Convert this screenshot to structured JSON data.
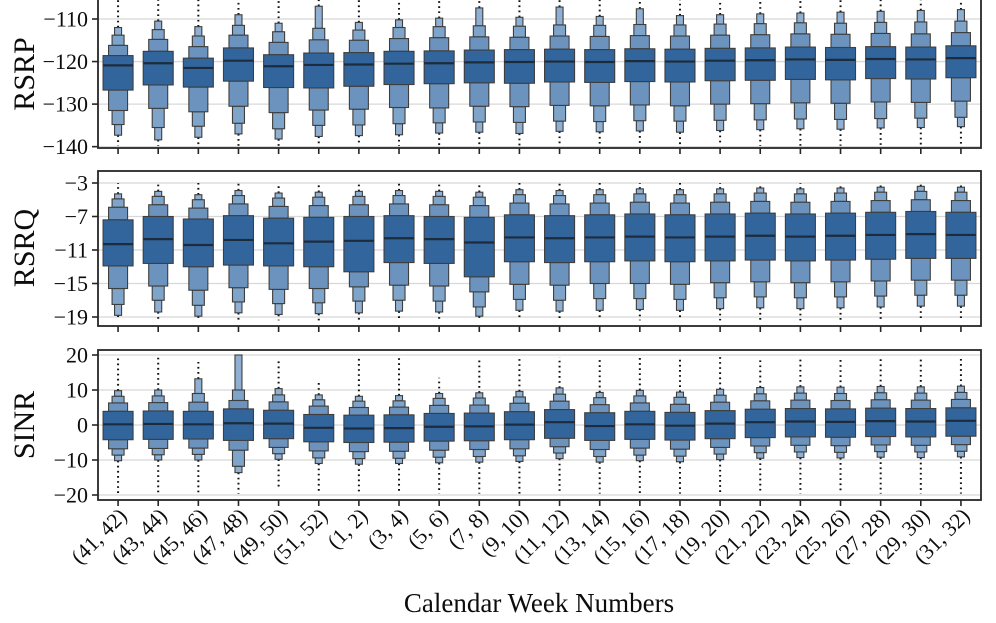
{
  "chart_data": {
    "type": "boxen",
    "description": "Three vertically stacked letter-value (boxen) plots sharing one categorical x-axis",
    "xlabel": "Calendar Week Numbers",
    "categories": [
      "(41, 42)",
      "(43, 44)",
      "(45, 46)",
      "(47, 48)",
      "(49, 50)",
      "(51, 52)",
      "(1, 2)",
      "(3, 4)",
      "(5, 6)",
      "(7, 8)",
      "(9, 10)",
      "(11, 12)",
      "(13, 14)",
      "(15, 16)",
      "(17, 18)",
      "(19, 20)",
      "(21, 22)",
      "(23, 24)",
      "(25, 26)",
      "(27, 28)",
      "(29, 30)",
      "(31, 32)"
    ],
    "stat_order": [
      "median",
      "q1",
      "q3",
      "lower_eighth",
      "upper_eighth",
      "lower_16th",
      "upper_16th",
      "lower_tail",
      "upper_tail",
      "outlier_min",
      "outlier_max"
    ],
    "grid": true,
    "legend": false,
    "colors": {
      "box_level0": "#32659c",
      "box_level1": "#6b93be",
      "box_level2": "#7ea4c9",
      "box_level3": "#8fb0d2",
      "box_edge": "#3e3e3e",
      "median_line": "#1d2c3c",
      "frame": "#262626",
      "gridline": "#d8d8d8",
      "outlier_dots": "#111111"
    },
    "panels": [
      {
        "ylabel": "RSRP",
        "yticks": [
          -110,
          -120,
          -130,
          -140
        ],
        "ylim": [
          -140.3,
          -105.5
        ],
        "top_cropped": true,
        "stats": [
          [
            -120.9,
            -126.7,
            -118.6,
            -131.5,
            -116.2,
            -134.8,
            -113.8,
            -137.3,
            -112.0,
            -139.8,
            -105.5
          ],
          [
            -120.4,
            -125.5,
            -117.6,
            -131.0,
            -114.8,
            -135.5,
            -112.5,
            -138.4,
            -110.5,
            -139.8,
            -105.5
          ],
          [
            -121.5,
            -126.0,
            -119.2,
            -131.8,
            -116.5,
            -135.2,
            -114.0,
            -137.8,
            -111.8,
            -139.8,
            -105.5
          ],
          [
            -119.8,
            -124.6,
            -116.8,
            -130.5,
            -113.8,
            -134.5,
            -111.5,
            -137.0,
            -109.0,
            -139.8,
            -105.5
          ],
          [
            -121.1,
            -126.1,
            -118.4,
            -132.0,
            -115.5,
            -135.8,
            -113.0,
            -138.2,
            -111.0,
            -139.8,
            -105.5
          ],
          [
            -120.8,
            -126.2,
            -118.0,
            -131.4,
            -114.9,
            -135.0,
            -112.2,
            -137.6,
            -107.0,
            -139.8,
            -105.5
          ],
          [
            -120.7,
            -125.8,
            -117.9,
            -131.2,
            -115.0,
            -134.9,
            -112.6,
            -137.4,
            -110.8,
            -139.8,
            -105.5
          ],
          [
            -120.5,
            -125.4,
            -117.6,
            -130.8,
            -114.6,
            -134.6,
            -112.0,
            -137.2,
            -110.2,
            -139.8,
            -105.5
          ],
          [
            -120.4,
            -125.2,
            -117.5,
            -130.9,
            -114.4,
            -134.4,
            -111.8,
            -136.8,
            -109.8,
            -139.8,
            -105.5
          ],
          [
            -120.2,
            -125.0,
            -117.3,
            -130.5,
            -114.2,
            -134.2,
            -111.6,
            -136.6,
            -107.4,
            -139.8,
            -105.5
          ],
          [
            -120.1,
            -125.1,
            -117.2,
            -130.6,
            -114.3,
            -134.3,
            -111.7,
            -136.9,
            -109.6,
            -139.8,
            -105.5
          ],
          [
            -120.0,
            -124.8,
            -117.1,
            -130.3,
            -114.0,
            -134.0,
            -111.4,
            -136.4,
            -107.2,
            -139.8,
            -105.5
          ],
          [
            -120.1,
            -124.9,
            -117.2,
            -130.4,
            -114.1,
            -134.1,
            -111.5,
            -136.5,
            -109.4,
            -139.8,
            -105.5
          ],
          [
            -119.9,
            -124.7,
            -117.0,
            -130.2,
            -113.9,
            -133.9,
            -111.3,
            -136.3,
            -107.6,
            -139.8,
            -105.5
          ],
          [
            -120.0,
            -124.8,
            -117.1,
            -130.4,
            -114.0,
            -134.0,
            -111.4,
            -136.6,
            -109.2,
            -139.8,
            -105.5
          ],
          [
            -119.8,
            -124.5,
            -116.9,
            -130.0,
            -113.8,
            -133.8,
            -111.2,
            -136.2,
            -109.0,
            -139.8,
            -105.5
          ],
          [
            -119.7,
            -124.4,
            -116.8,
            -129.9,
            -113.7,
            -133.7,
            -111.1,
            -136.0,
            -108.8,
            -139.8,
            -105.5
          ],
          [
            -119.5,
            -124.2,
            -116.6,
            -129.7,
            -113.5,
            -133.5,
            -110.9,
            -135.8,
            -108.6,
            -139.8,
            -105.5
          ],
          [
            -119.6,
            -124.3,
            -116.7,
            -129.8,
            -113.6,
            -133.6,
            -111.0,
            -135.9,
            -108.4,
            -139.8,
            -105.5
          ],
          [
            -119.4,
            -124.0,
            -116.5,
            -129.5,
            -113.4,
            -133.4,
            -110.8,
            -135.6,
            -108.2,
            -139.8,
            -105.5
          ],
          [
            -119.5,
            -124.1,
            -116.6,
            -129.6,
            -113.5,
            -133.3,
            -110.7,
            -135.5,
            -108.0,
            -139.8,
            -105.5
          ],
          [
            -119.2,
            -123.8,
            -116.3,
            -129.3,
            -113.2,
            -133.1,
            -110.5,
            -135.3,
            -107.8,
            -139.8,
            -105.5
          ]
        ]
      },
      {
        "ylabel": "RSRQ",
        "yticks": [
          -3,
          -7,
          -11,
          -15,
          -19
        ],
        "ylim": [
          -19.9,
          -1.8
        ],
        "top_cropped": false,
        "stats": [
          [
            -10.3,
            -12.9,
            -7.4,
            -15.6,
            -5.9,
            -17.5,
            -4.9,
            -18.8,
            -4.3,
            -19.4,
            -3.0
          ],
          [
            -9.7,
            -12.6,
            -7.0,
            -15.3,
            -5.6,
            -17.0,
            -4.6,
            -18.4,
            -4.0,
            -19.4,
            -3.0
          ],
          [
            -10.4,
            -13.0,
            -7.3,
            -15.8,
            -6.0,
            -17.6,
            -5.0,
            -18.9,
            -4.4,
            -19.4,
            -3.0
          ],
          [
            -9.8,
            -12.8,
            -6.9,
            -15.5,
            -5.5,
            -17.2,
            -4.5,
            -18.5,
            -3.9,
            -19.4,
            -3.0
          ],
          [
            -10.2,
            -12.9,
            -7.2,
            -15.7,
            -5.8,
            -17.4,
            -4.8,
            -18.7,
            -4.2,
            -19.4,
            -3.0
          ],
          [
            -10.0,
            -13.0,
            -7.1,
            -15.6,
            -5.7,
            -17.3,
            -4.7,
            -18.6,
            -4.1,
            -19.4,
            -3.0
          ],
          [
            -9.9,
            -13.6,
            -7.0,
            -15.4,
            -5.6,
            -17.1,
            -4.6,
            -18.5,
            -4.0,
            -19.4,
            -3.0
          ],
          [
            -9.6,
            -12.5,
            -6.9,
            -15.2,
            -5.5,
            -17.0,
            -4.5,
            -18.3,
            -3.9,
            -19.4,
            -3.0
          ],
          [
            -9.7,
            -12.6,
            -7.0,
            -15.3,
            -5.6,
            -17.1,
            -4.6,
            -18.4,
            -4.0,
            -19.4,
            -3.0
          ],
          [
            -10.1,
            -14.2,
            -7.1,
            -16.0,
            -5.7,
            -17.8,
            -4.7,
            -18.9,
            -4.1,
            -19.4,
            -3.0
          ],
          [
            -9.5,
            -12.4,
            -6.8,
            -15.1,
            -5.4,
            -16.9,
            -4.4,
            -18.2,
            -3.8,
            -19.4,
            -3.0
          ],
          [
            -9.6,
            -12.5,
            -6.9,
            -15.2,
            -5.5,
            -17.0,
            -4.5,
            -18.3,
            -3.9,
            -19.4,
            -3.0
          ],
          [
            -9.5,
            -12.4,
            -6.8,
            -15.0,
            -5.4,
            -16.8,
            -4.4,
            -18.2,
            -3.8,
            -19.4,
            -3.0
          ],
          [
            -9.4,
            -12.3,
            -6.7,
            -15.0,
            -5.3,
            -16.8,
            -4.3,
            -18.1,
            -3.7,
            -19.4,
            -3.0
          ],
          [
            -9.5,
            -12.4,
            -6.8,
            -15.1,
            -5.4,
            -16.9,
            -4.4,
            -18.2,
            -3.8,
            -19.4,
            -3.0
          ],
          [
            -9.4,
            -12.3,
            -6.7,
            -14.9,
            -5.3,
            -16.7,
            -4.3,
            -18.0,
            -3.7,
            -19.4,
            -3.0
          ],
          [
            -9.3,
            -12.2,
            -6.6,
            -14.8,
            -5.2,
            -16.6,
            -4.2,
            -17.9,
            -3.6,
            -19.4,
            -3.0
          ],
          [
            -9.4,
            -12.3,
            -6.7,
            -14.9,
            -5.3,
            -16.7,
            -4.3,
            -18.0,
            -3.7,
            -19.4,
            -3.0
          ],
          [
            -9.3,
            -12.2,
            -6.6,
            -14.8,
            -5.2,
            -16.6,
            -4.2,
            -17.9,
            -3.6,
            -19.4,
            -3.0
          ],
          [
            -9.2,
            -12.1,
            -6.5,
            -14.7,
            -5.1,
            -16.5,
            -4.1,
            -17.8,
            -3.5,
            -19.4,
            -3.0
          ],
          [
            -9.1,
            -12.0,
            -6.4,
            -14.6,
            -5.0,
            -16.4,
            -4.0,
            -17.7,
            -3.4,
            -19.4,
            -3.0
          ],
          [
            -9.2,
            -12.0,
            -6.5,
            -14.6,
            -5.1,
            -16.4,
            -4.1,
            -17.7,
            -3.5,
            -19.4,
            -3.0
          ]
        ]
      },
      {
        "ylabel": "SINR",
        "yticks": [
          20,
          10,
          0,
          -10,
          -20
        ],
        "ylim": [
          -21.4,
          21.4
        ],
        "top_cropped": false,
        "stats": [
          [
            0.2,
            -4.2,
            3.9,
            -6.8,
            6.3,
            -8.6,
            8.2,
            -10.2,
            9.8,
            -19.6,
            19.0
          ],
          [
            0.3,
            -4.1,
            4.0,
            -6.7,
            6.4,
            -8.5,
            8.3,
            -10.0,
            10.0,
            -19.6,
            19.2
          ],
          [
            0.2,
            -4.0,
            3.9,
            -6.6,
            6.5,
            -8.4,
            9.0,
            -10.0,
            13.2,
            -19.6,
            18.0
          ],
          [
            0.5,
            -4.4,
            4.6,
            -7.2,
            7.0,
            -11.8,
            10.0,
            -13.6,
            20.0,
            -19.6,
            20.0
          ],
          [
            0.4,
            -3.9,
            4.2,
            -6.4,
            6.6,
            -8.2,
            8.6,
            -9.8,
            10.4,
            -18.2,
            19.0
          ],
          [
            -0.8,
            -4.8,
            3.0,
            -7.4,
            5.4,
            -9.4,
            7.2,
            -11.0,
            8.6,
            -19.6,
            12.0
          ],
          [
            -1.0,
            -5.0,
            2.8,
            -7.6,
            5.0,
            -9.6,
            6.8,
            -11.2,
            8.2,
            -19.6,
            19.0
          ],
          [
            -0.9,
            -4.9,
            2.9,
            -7.5,
            5.1,
            -9.5,
            6.9,
            -11.0,
            8.4,
            -19.6,
            19.2
          ],
          [
            -0.5,
            -4.6,
            3.3,
            -7.2,
            5.6,
            -9.2,
            7.6,
            -10.8,
            9.0,
            -19.6,
            13.5
          ],
          [
            -0.4,
            -4.5,
            3.4,
            -7.0,
            5.7,
            -9.0,
            7.7,
            -10.6,
            9.2,
            -19.6,
            19.0
          ],
          [
            0.1,
            -4.2,
            3.8,
            -6.8,
            6.2,
            -8.8,
            8.0,
            -10.4,
            9.6,
            -19.6,
            19.4
          ],
          [
            0.8,
            -3.8,
            4.4,
            -6.2,
            6.8,
            -8.0,
            8.8,
            -9.6,
            10.6,
            -19.6,
            19.4
          ],
          [
            -0.3,
            -4.4,
            3.5,
            -7.0,
            5.8,
            -9.0,
            7.8,
            -10.6,
            9.3,
            -19.6,
            19.0
          ],
          [
            0.2,
            -4.1,
            3.9,
            -6.6,
            6.3,
            -8.6,
            8.3,
            -10.2,
            9.9,
            -19.6,
            19.4
          ],
          [
            -0.2,
            -4.3,
            3.6,
            -6.9,
            5.9,
            -8.9,
            7.9,
            -10.5,
            9.4,
            -19.6,
            19.2
          ],
          [
            0.4,
            -3.9,
            4.1,
            -6.4,
            6.5,
            -8.3,
            8.5,
            -9.9,
            10.2,
            -19.6,
            19.4
          ],
          [
            0.8,
            -3.6,
            4.5,
            -6.0,
            6.9,
            -7.9,
            8.9,
            -9.5,
            10.7,
            -19.6,
            19.4
          ],
          [
            1.0,
            -3.4,
            4.7,
            -5.8,
            7.1,
            -7.7,
            9.1,
            -9.3,
            10.9,
            -19.6,
            19.4
          ],
          [
            0.9,
            -3.5,
            4.6,
            -5.9,
            7.0,
            -7.8,
            9.0,
            -9.4,
            10.8,
            -19.6,
            19.4
          ],
          [
            1.1,
            -3.3,
            4.8,
            -5.7,
            7.2,
            -7.6,
            9.2,
            -9.2,
            11.0,
            -19.6,
            19.4
          ],
          [
            1.0,
            -3.4,
            4.7,
            -5.8,
            7.1,
            -7.7,
            9.1,
            -9.3,
            10.9,
            -19.6,
            19.4
          ],
          [
            1.2,
            -3.2,
            4.9,
            -5.6,
            7.3,
            -7.5,
            9.3,
            -9.1,
            11.1,
            -19.6,
            19.4
          ]
        ]
      }
    ]
  }
}
